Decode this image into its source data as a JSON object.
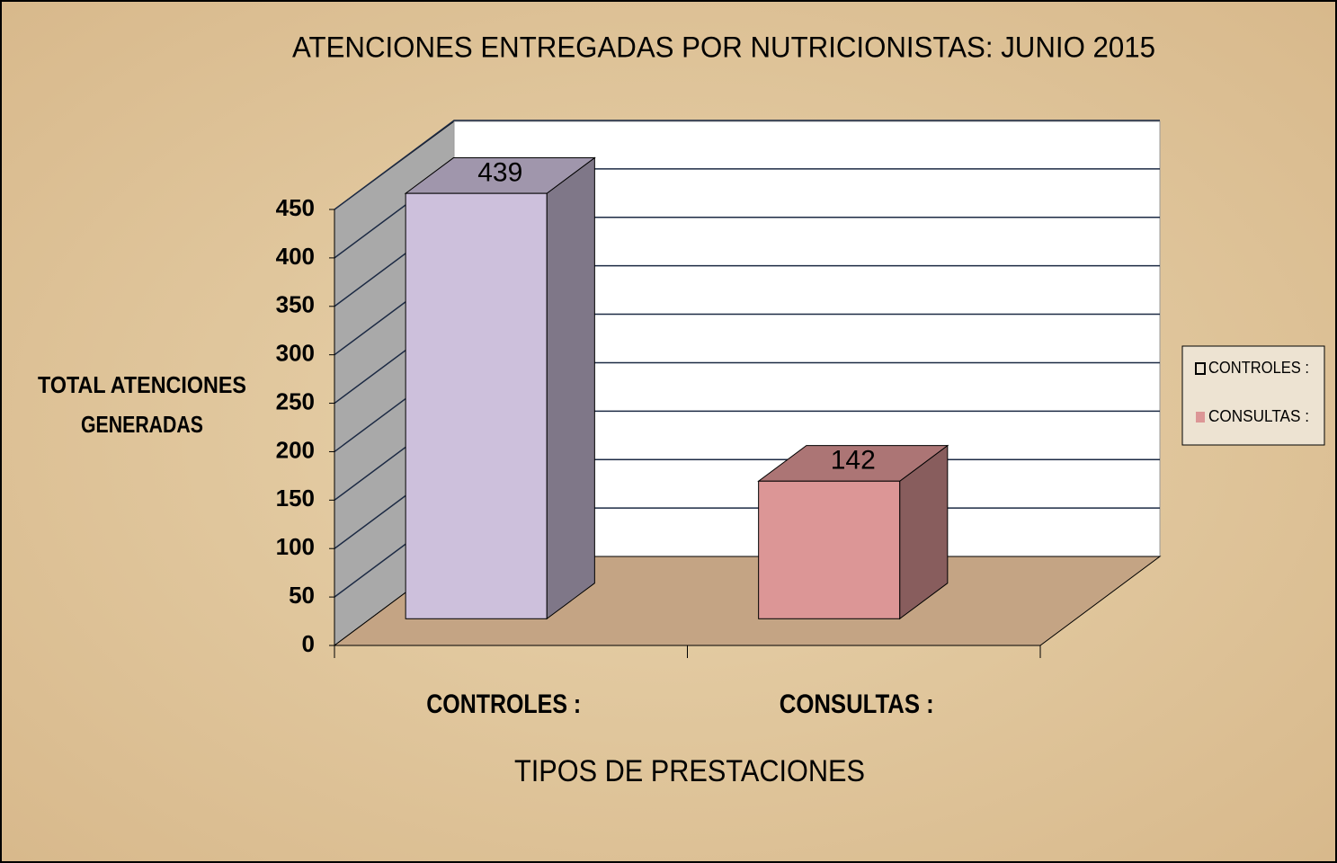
{
  "chart_data": {
    "type": "bar3d",
    "title": "ATENCIONES ENTREGADAS POR NUTRICIONISTAS: JUNIO   2015",
    "ylabel": [
      "TOTAL ATENCIONES",
      "GENERADAS"
    ],
    "xlabel": "TIPOS   DE PRESTACIONES",
    "categories": [
      "CONTROLES :",
      "CONSULTAS :"
    ],
    "values": [
      439,
      142
    ],
    "colors": [
      "#cdc0dc",
      "#dc9696"
    ],
    "ylim": [
      0,
      450
    ],
    "yticks": [
      0,
      50,
      100,
      150,
      200,
      250,
      300,
      350,
      400,
      450
    ],
    "grid": true,
    "legend": "right"
  }
}
